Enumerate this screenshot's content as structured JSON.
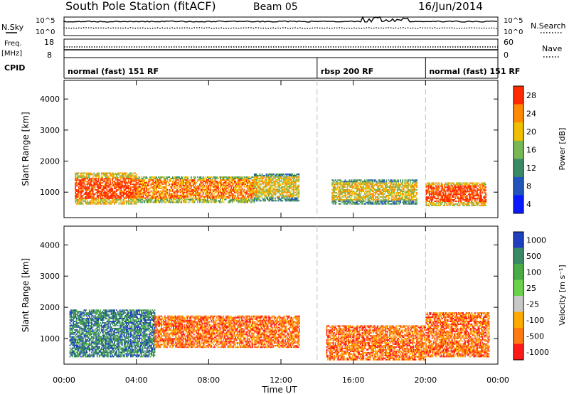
{
  "header": {
    "station": "South Pole Station (fitACF)",
    "beam": "Beam 05",
    "date": "16/Jun/2014"
  },
  "noise_panel": {
    "left_label": "N.Sky",
    "right_label": "N.Search",
    "ticks_left": [
      "10^5",
      "10^0"
    ],
    "ticks_right": [
      "10^5",
      "10^0"
    ]
  },
  "freq_panel": {
    "left_label": "Freq.",
    "left_unit": "[MHz]",
    "right_label": "Nave",
    "ticks_left": [
      "18",
      "8"
    ],
    "ticks_right": [
      "60",
      "0"
    ]
  },
  "cpid": {
    "label": "CPID",
    "segments": [
      {
        "label": "normal (fast) 151 RF",
        "start": 0,
        "end": 14
      },
      {
        "label": "rbsp 200 RF",
        "start": 14,
        "end": 20
      },
      {
        "label": "normal (fast) 151 RF",
        "start": 20,
        "end": 24
      }
    ]
  },
  "chart_data": [
    {
      "type": "heatmap",
      "title": "",
      "xlabel": "Time UT",
      "ylabel": "Slant Range [km]",
      "x_ticks": [
        "00:00",
        "04:00",
        "08:00",
        "12:00",
        "16:00",
        "20:00",
        "00:00"
      ],
      "xlim": [
        0,
        24
      ],
      "y_ticks": [
        1000,
        2000,
        3000,
        4000
      ],
      "ylim": [
        180,
        4600
      ],
      "colorbar": {
        "label": "Power [dB]",
        "ticks": [
          "4",
          "8",
          "12",
          "16",
          "20",
          "24",
          "28"
        ],
        "colors": [
          "#0a1aff",
          "#2255bb",
          "#3a8a66",
          "#77b855",
          "#f0c000",
          "#ff8a00",
          "#ff2a00"
        ]
      },
      "bands": [
        {
          "t0": 0.6,
          "t1": 4.0,
          "r0": 600,
          "r1": 1600,
          "level": 6
        },
        {
          "t0": 4.0,
          "t1": 10.5,
          "r0": 650,
          "r1": 1500,
          "level": 5
        },
        {
          "t0": 10.5,
          "t1": 13.0,
          "r0": 700,
          "r1": 1600,
          "level": 4
        },
        {
          "t0": 14.8,
          "t1": 19.5,
          "r0": 600,
          "r1": 1400,
          "level": 4
        },
        {
          "t0": 20.0,
          "t1": 23.3,
          "r0": 550,
          "r1": 1300,
          "level": 6
        }
      ]
    },
    {
      "type": "heatmap",
      "title": "",
      "xlabel": "Time UT",
      "ylabel": "Slant Range [km]",
      "x_ticks": [
        "00:00",
        "04:00",
        "08:00",
        "12:00",
        "16:00",
        "20:00",
        "00:00"
      ],
      "xlim": [
        0,
        24
      ],
      "y_ticks": [
        1000,
        2000,
        3000,
        4000
      ],
      "ylim": [
        180,
        4600
      ],
      "colorbar": {
        "label": "Velocity [m s⁻¹]",
        "ticks": [
          "1000",
          "500",
          "100",
          "25",
          "-25",
          "-100",
          "-500",
          "-1000"
        ],
        "colors": [
          "#1f3fbf",
          "#3a8a66",
          "#4aaa44",
          "#6ad24a",
          "#c8c8c8",
          "#ffaa00",
          "#ff7a10",
          "#ff1a1a"
        ]
      },
      "bands": [
        {
          "t0": 0.3,
          "t1": 5.0,
          "r0": 400,
          "r1": 1900,
          "level": 1
        },
        {
          "t0": 5.0,
          "t1": 13.0,
          "r0": 700,
          "r1": 1700,
          "level": 6
        },
        {
          "t0": 14.5,
          "t1": 20.0,
          "r0": 300,
          "r1": 1400,
          "level": 6
        },
        {
          "t0": 20.0,
          "t1": 23.5,
          "r0": 400,
          "r1": 1800,
          "level": 6
        }
      ]
    }
  ],
  "colors": {
    "cpid_divider": "#c0c0c0"
  }
}
